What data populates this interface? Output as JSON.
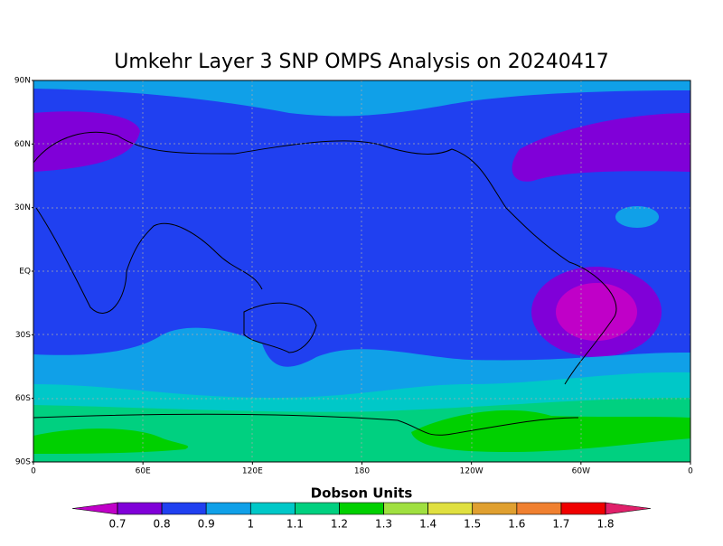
{
  "title": "Umkehr Layer 3 SNP OMPS Analysis on 20240417",
  "lat_ticks": [
    "90N",
    "60N",
    "30N",
    "EQ",
    "30S",
    "60S",
    "90S"
  ],
  "lon_ticks": [
    "0",
    "60E",
    "120E",
    "180",
    "120W",
    "60W",
    "0"
  ],
  "colorbar": {
    "label": "Dobson Units",
    "ticks": [
      0.7,
      0.8,
      0.9,
      1,
      1.1,
      1.2,
      1.3,
      1.4,
      1.5,
      1.6,
      1.7,
      1.8
    ],
    "colors": [
      "#c000c8",
      "#8000d8",
      "#2040f0",
      "#10a0e8",
      "#00c8c8",
      "#00d080",
      "#00d000",
      "#a0e040",
      "#e0e040",
      "#e0a030",
      "#f08030",
      "#f00000",
      "#e0206a"
    ]
  }
}
